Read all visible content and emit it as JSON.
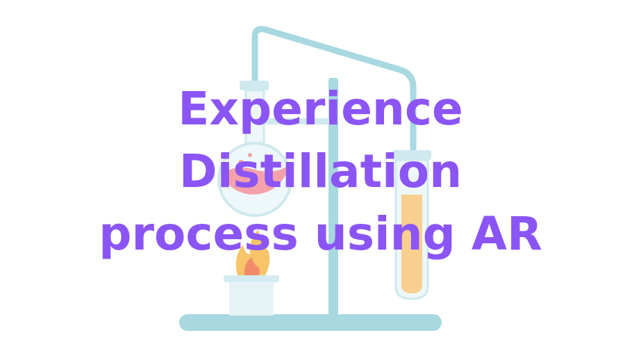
{
  "title": {
    "line1": "Experience",
    "line2": "Distillation",
    "line3": "process using AR"
  },
  "colors": {
    "background": "#ffffff",
    "title_text": "#8b55f5",
    "apparatus": "#a8d8e0",
    "liquid_flask": "#f4a1a9",
    "liquid_tube": "#f8cf8f",
    "flame_outer": "#f7c46a",
    "flame_inner": "#f28b6a",
    "burner": "#e6f3f6"
  },
  "illustration": {
    "subject": "distillation apparatus",
    "icons": [
      "round-bottom-flask-icon",
      "condenser-tube-icon",
      "test-tube-icon",
      "flame-icon",
      "burner-icon",
      "retort-stand-icon"
    ]
  }
}
